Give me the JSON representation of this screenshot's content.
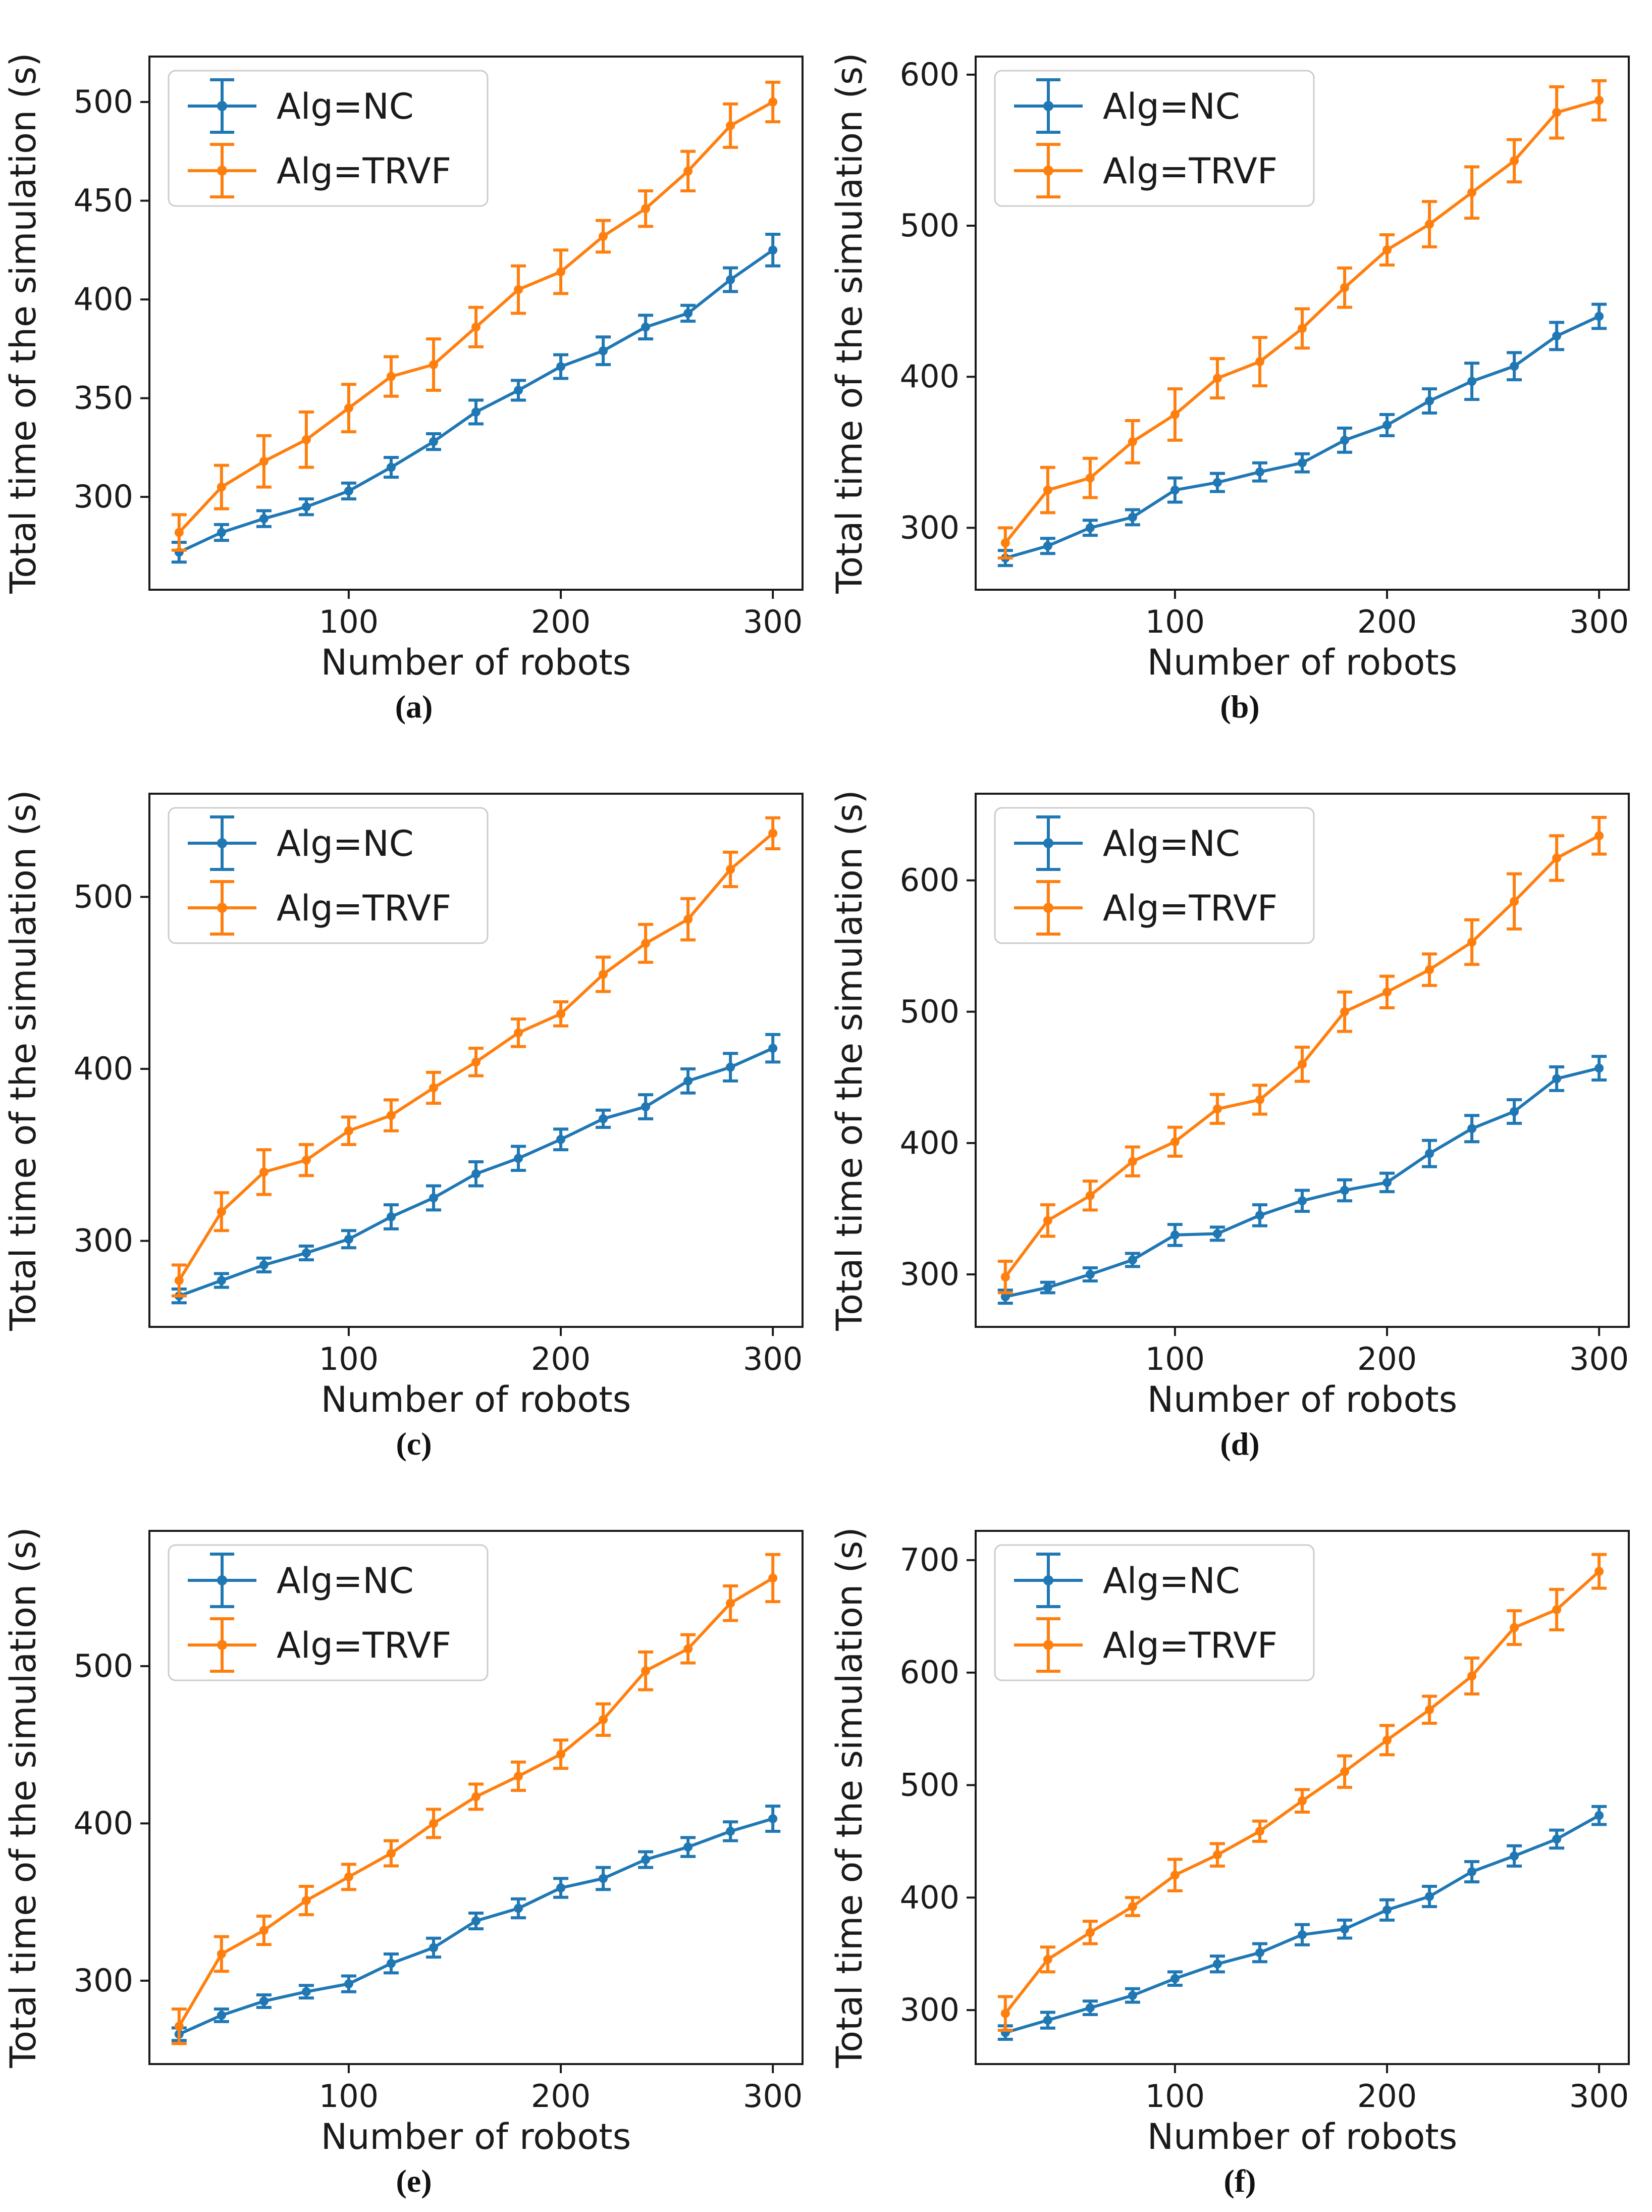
{
  "colors": {
    "nc": "#1f77b4",
    "trvf": "#ff7f0e",
    "axis": "#1a1a1a",
    "text": "#1a1a1a",
    "legend_border": "#cccccc",
    "legend_fill": "#ffffff"
  },
  "chart_data": [
    {
      "id": "a",
      "caption": "(a)",
      "type": "line",
      "xlabel": "Number of robots",
      "ylabel": "Total time of the simulation (s)",
      "x": [
        20,
        40,
        60,
        80,
        100,
        120,
        140,
        160,
        180,
        200,
        220,
        240,
        260,
        280,
        300
      ],
      "xticks": [
        100,
        200,
        300
      ],
      "xlim": [
        6,
        314
      ],
      "yticks": [
        300,
        350,
        400,
        450,
        500
      ],
      "ylim": [
        253,
        523
      ],
      "grid": false,
      "legend_position": "upper-left",
      "series": [
        {
          "name": "Alg=NC",
          "color_key": "nc",
          "values": [
            272,
            282,
            289,
            295,
            303,
            315,
            328,
            343,
            354,
            366,
            374,
            386,
            393,
            410,
            425
          ],
          "errors": [
            5,
            4,
            4,
            4,
            4,
            5,
            4,
            6,
            5,
            6,
            7,
            6,
            4,
            6,
            8
          ]
        },
        {
          "name": "Alg=TRVF",
          "color_key": "trvf",
          "values": [
            282,
            305,
            318,
            329,
            345,
            361,
            367,
            386,
            405,
            414,
            432,
            446,
            465,
            488,
            500
          ],
          "errors": [
            9,
            11,
            13,
            14,
            12,
            10,
            13,
            10,
            12,
            11,
            8,
            9,
            10,
            11,
            10
          ]
        }
      ]
    },
    {
      "id": "b",
      "caption": "(b)",
      "type": "line",
      "xlabel": "Number of robots",
      "ylabel": "Total time of the simulation (s)",
      "x": [
        20,
        40,
        60,
        80,
        100,
        120,
        140,
        160,
        180,
        200,
        220,
        240,
        260,
        280,
        300
      ],
      "xticks": [
        100,
        200,
        300
      ],
      "xlim": [
        6,
        314
      ],
      "yticks": [
        300,
        400,
        500,
        600
      ],
      "ylim": [
        259,
        612
      ],
      "grid": false,
      "legend_position": "upper-left",
      "series": [
        {
          "name": "Alg=NC",
          "color_key": "nc",
          "values": [
            280,
            288,
            300,
            307,
            325,
            330,
            337,
            343,
            358,
            368,
            384,
            397,
            407,
            427,
            440
          ],
          "errors": [
            5,
            5,
            5,
            5,
            8,
            6,
            6,
            6,
            8,
            7,
            8,
            12,
            9,
            9,
            8
          ]
        },
        {
          "name": "Alg=TRVF",
          "color_key": "trvf",
          "values": [
            290,
            325,
            333,
            357,
            375,
            399,
            410,
            432,
            459,
            484,
            501,
            522,
            543,
            575,
            583
          ],
          "errors": [
            10,
            15,
            13,
            14,
            17,
            13,
            16,
            13,
            13,
            10,
            15,
            17,
            14,
            17,
            13
          ]
        }
      ]
    },
    {
      "id": "c",
      "caption": "(c)",
      "type": "line",
      "xlabel": "Number of robots",
      "ylabel": "Total time of the simulation (s)",
      "x": [
        20,
        40,
        60,
        80,
        100,
        120,
        140,
        160,
        180,
        200,
        220,
        240,
        260,
        280,
        300
      ],
      "xticks": [
        100,
        200,
        300
      ],
      "xlim": [
        6,
        314
      ],
      "yticks": [
        300,
        400,
        500
      ],
      "ylim": [
        250,
        560
      ],
      "grid": false,
      "legend_position": "upper-left",
      "series": [
        {
          "name": "Alg=NC",
          "color_key": "nc",
          "values": [
            268,
            277,
            286,
            293,
            301,
            314,
            325,
            339,
            348,
            359,
            371,
            378,
            393,
            401,
            412
          ],
          "errors": [
            4,
            4,
            4,
            4,
            5,
            7,
            7,
            7,
            7,
            6,
            5,
            7,
            7,
            8,
            8
          ]
        },
        {
          "name": "Alg=TRVF",
          "color_key": "trvf",
          "values": [
            277,
            317,
            340,
            347,
            364,
            373,
            389,
            404,
            421,
            432,
            455,
            473,
            487,
            516,
            537
          ],
          "errors": [
            9,
            11,
            13,
            9,
            8,
            9,
            9,
            8,
            8,
            7,
            10,
            11,
            12,
            10,
            9
          ]
        }
      ]
    },
    {
      "id": "d",
      "caption": "(d)",
      "type": "line",
      "xlabel": "Number of robots",
      "ylabel": "Total time of the simulation (s)",
      "x": [
        20,
        40,
        60,
        80,
        100,
        120,
        140,
        160,
        180,
        200,
        220,
        240,
        260,
        280,
        300
      ],
      "xticks": [
        100,
        200,
        300
      ],
      "xlim": [
        6,
        314
      ],
      "yticks": [
        300,
        400,
        500,
        600
      ],
      "ylim": [
        260,
        666
      ],
      "grid": false,
      "legend_position": "upper-left",
      "series": [
        {
          "name": "Alg=NC",
          "color_key": "nc",
          "values": [
            283,
            290,
            300,
            311,
            330,
            331,
            345,
            356,
            364,
            370,
            392,
            411,
            424,
            449,
            457
          ],
          "errors": [
            5,
            4,
            5,
            5,
            8,
            5,
            8,
            8,
            8,
            7,
            10,
            10,
            9,
            9,
            9
          ]
        },
        {
          "name": "Alg=TRVF",
          "color_key": "trvf",
          "values": [
            298,
            341,
            360,
            386,
            401,
            426,
            433,
            460,
            500,
            515,
            532,
            553,
            584,
            617,
            634
          ],
          "errors": [
            12,
            12,
            11,
            11,
            11,
            11,
            11,
            13,
            15,
            12,
            12,
            17,
            21,
            17,
            14
          ]
        }
      ]
    },
    {
      "id": "e",
      "caption": "(e)",
      "type": "line",
      "xlabel": "Number of robots",
      "ylabel": "Total time of the simulation (s)",
      "x": [
        20,
        40,
        60,
        80,
        100,
        120,
        140,
        160,
        180,
        200,
        220,
        240,
        260,
        280,
        300
      ],
      "xticks": [
        100,
        200,
        300
      ],
      "xlim": [
        6,
        314
      ],
      "yticks": [
        300,
        400,
        500
      ],
      "ylim": [
        247,
        586
      ],
      "grid": false,
      "legend_position": "upper-left",
      "series": [
        {
          "name": "Alg=NC",
          "color_key": "nc",
          "values": [
            266,
            278,
            287,
            293,
            298,
            311,
            321,
            338,
            346,
            359,
            365,
            377,
            385,
            395,
            403
          ],
          "errors": [
            4,
            4,
            4,
            4,
            5,
            6,
            6,
            5,
            6,
            6,
            7,
            5,
            6,
            6,
            8
          ]
        },
        {
          "name": "Alg=TRVF",
          "color_key": "trvf",
          "values": [
            271,
            317,
            332,
            351,
            366,
            381,
            400,
            417,
            430,
            444,
            466,
            497,
            511,
            540,
            556
          ],
          "errors": [
            11,
            11,
            9,
            9,
            8,
            8,
            9,
            8,
            9,
            9,
            10,
            12,
            9,
            11,
            15
          ]
        }
      ]
    },
    {
      "id": "f",
      "caption": "(f)",
      "type": "line",
      "xlabel": "Number of robots",
      "ylabel": "Total time of the simulation (s)",
      "x": [
        20,
        40,
        60,
        80,
        100,
        120,
        140,
        160,
        180,
        200,
        220,
        240,
        260,
        280,
        300
      ],
      "xticks": [
        100,
        200,
        300
      ],
      "xlim": [
        6,
        314
      ],
      "yticks": [
        300,
        400,
        500,
        600,
        700
      ],
      "ylim": [
        252,
        726
      ],
      "grid": false,
      "legend_position": "upper-left",
      "series": [
        {
          "name": "Alg=NC",
          "color_key": "nc",
          "values": [
            280,
            291,
            302,
            313,
            328,
            341,
            351,
            367,
            372,
            389,
            401,
            423,
            437,
            452,
            473
          ],
          "errors": [
            6,
            7,
            6,
            6,
            6,
            7,
            8,
            9,
            8,
            9,
            9,
            9,
            9,
            8,
            8
          ]
        },
        {
          "name": "Alg=TRVF",
          "color_key": "trvf",
          "values": [
            297,
            345,
            369,
            392,
            420,
            438,
            459,
            486,
            512,
            540,
            567,
            597,
            640,
            656,
            690
          ],
          "errors": [
            15,
            11,
            10,
            8,
            14,
            10,
            9,
            10,
            14,
            13,
            12,
            16,
            15,
            18,
            15
          ]
        }
      ]
    }
  ]
}
